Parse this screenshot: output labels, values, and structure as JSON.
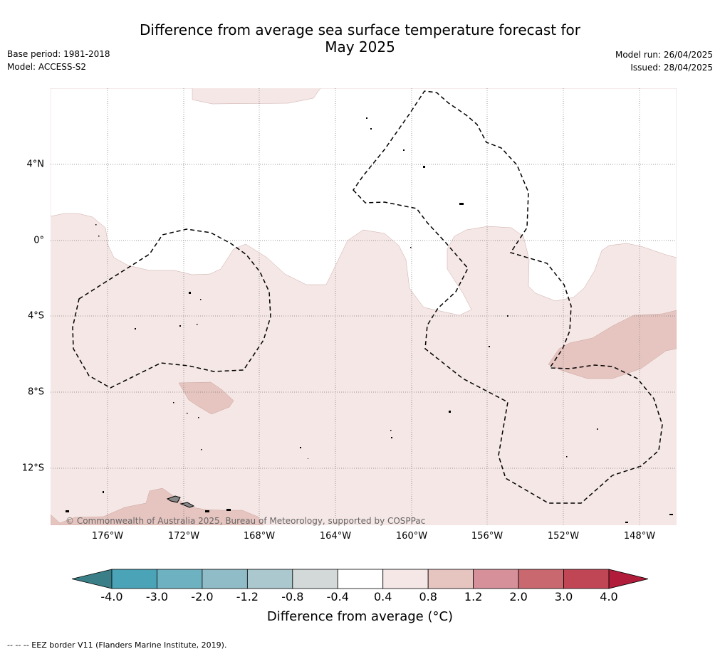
{
  "title_line1": "Difference from average sea surface temperature forecast for",
  "title_line2": "May 2025",
  "left_meta": {
    "base_period": "Base period: 1981-2018",
    "model": "Model: ACCESS-S2"
  },
  "right_meta": {
    "model_run": "Model run: 26/04/2025",
    "issued": "Issued: 28/04/2025"
  },
  "map": {
    "lon_labels": [
      "176°W",
      "172°W",
      "168°W",
      "164°W",
      "160°W",
      "156°W",
      "152°W",
      "148°W"
    ],
    "lat_labels": [
      "4°N",
      "0°",
      "4°S",
      "8°S",
      "12°S"
    ],
    "copyright": "© Commonwealth of Australia 2025, Bureau of Meteorology, supported by COSPPac"
  },
  "colorbar": {
    "ticks": [
      "-4.0",
      "-3.0",
      "-2.0",
      "-1.2",
      "-0.8",
      "-0.4",
      "0.4",
      "0.8",
      "1.2",
      "2.0",
      "3.0",
      "4.0"
    ],
    "colors": [
      "#4aa3b6",
      "#6eb1c0",
      "#8fbcc7",
      "#abc8ce",
      "#d3d9d8",
      "#ffffff",
      "#f5e7e5",
      "#e6c5c0",
      "#d5909a",
      "#c9686f",
      "#c04656"
    ],
    "low_extend_color": "#3a7f87",
    "high_extend_color": "#b01c3a",
    "label": "Difference from average (°C)"
  },
  "footnote": "--  --  -- EEZ border V11 (Flanders Marine Institute, 2019)."
}
